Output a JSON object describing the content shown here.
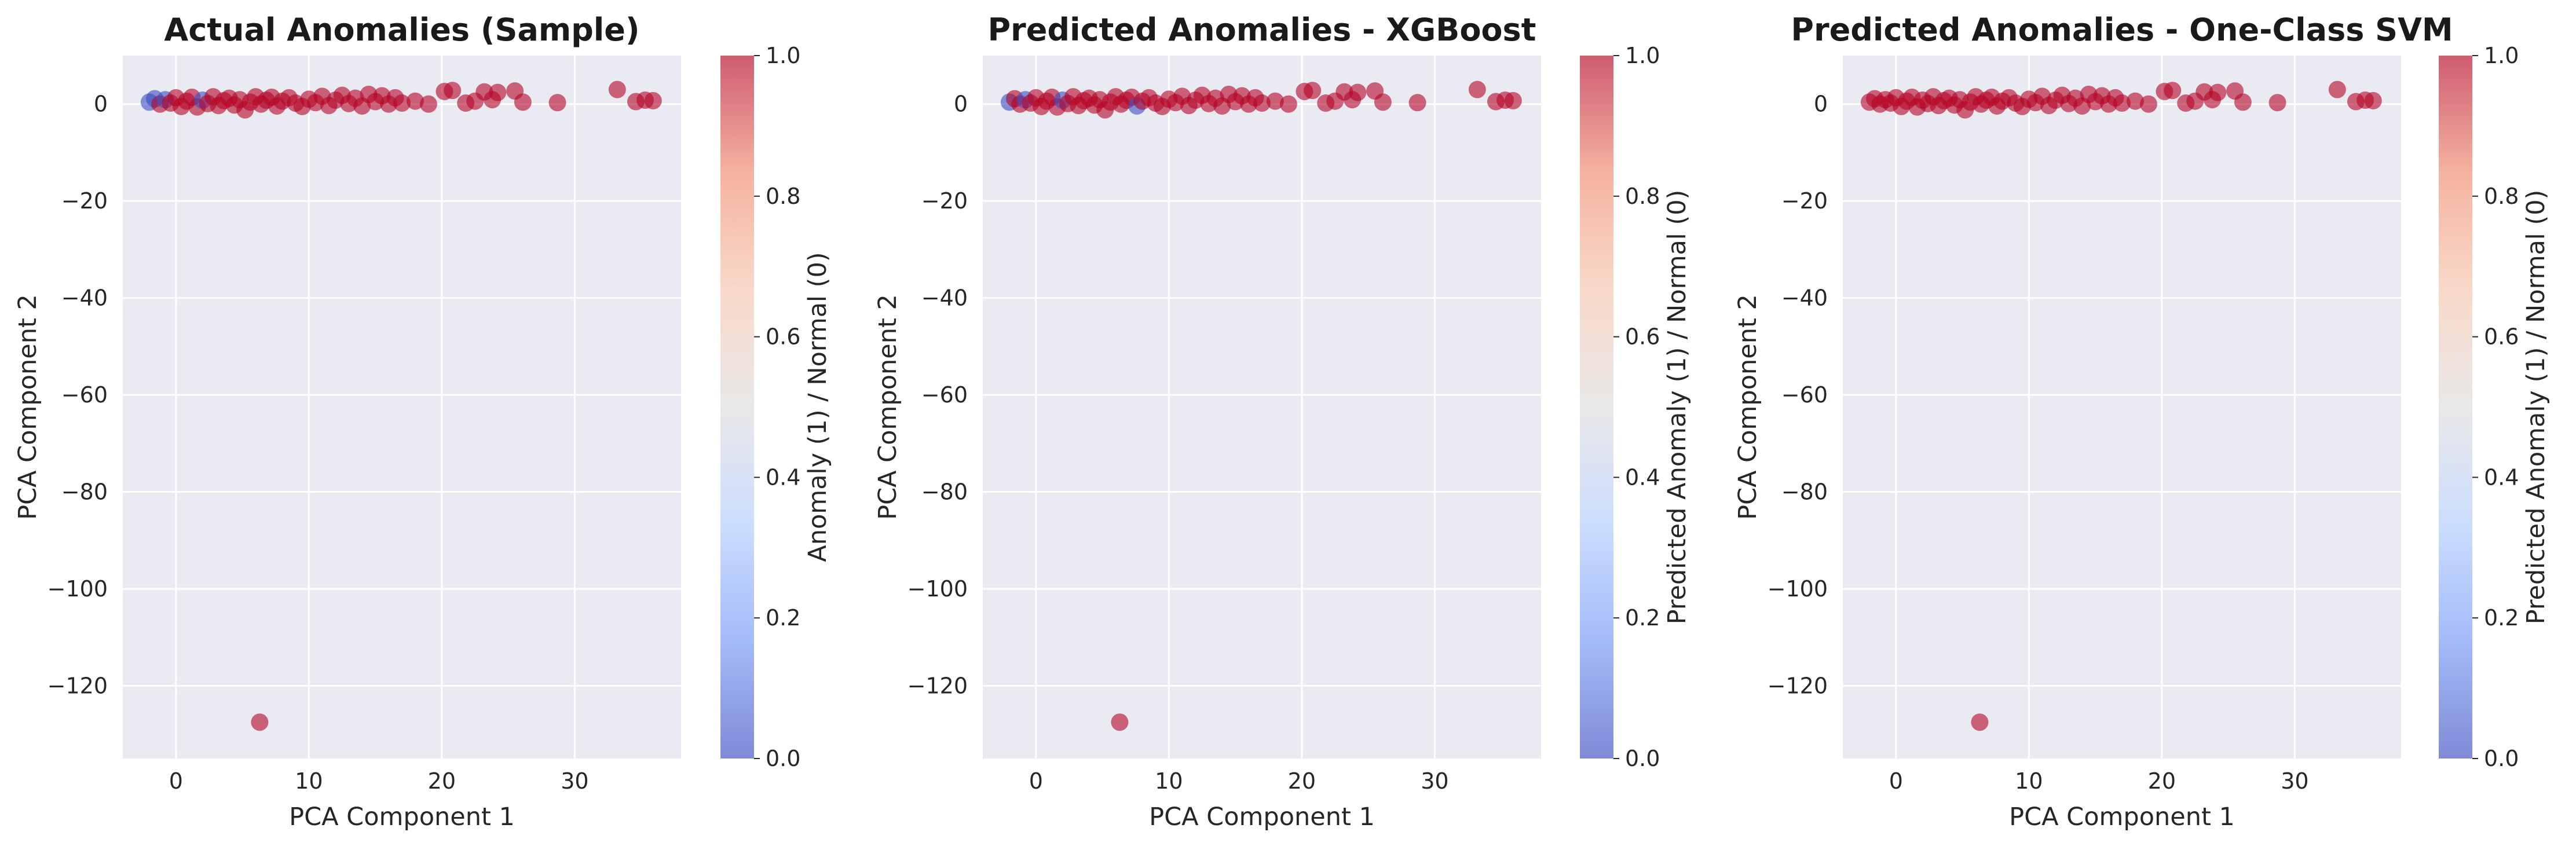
{
  "chart_data": [
    {
      "type": "scatter",
      "title": "Actual Anomalies (Sample)",
      "xlabel": "PCA Component 1",
      "ylabel": "PCA Component 2",
      "xlim": [
        -4,
        38
      ],
      "ylim": [
        -135,
        10
      ],
      "xticks": [
        0,
        10,
        20,
        30
      ],
      "yticks": [
        0,
        -20,
        -40,
        -60,
        -80,
        -100,
        -120
      ],
      "grid": true,
      "colormap": "coolwarm",
      "colorbar": {
        "label": "Anomaly (1) / Normal (0)",
        "range": [
          0,
          1
        ],
        "ticks": [
          "0.0",
          "0.2",
          "0.4",
          "0.6",
          "0.8",
          "1.0"
        ]
      },
      "points": [
        {
          "x": -2.0,
          "y": 0.4,
          "c": 0
        },
        {
          "x": -1.6,
          "y": 1.1,
          "c": 0
        },
        {
          "x": -1.2,
          "y": 0.0,
          "c": 1
        },
        {
          "x": -0.8,
          "y": 0.9,
          "c": 0
        },
        {
          "x": -0.4,
          "y": 0.2,
          "c": 1
        },
        {
          "x": 0.0,
          "y": 1.3,
          "c": 1
        },
        {
          "x": 0.4,
          "y": -0.5,
          "c": 1
        },
        {
          "x": 0.8,
          "y": 0.6,
          "c": 1
        },
        {
          "x": 1.2,
          "y": 1.4,
          "c": 1
        },
        {
          "x": 1.6,
          "y": -0.6,
          "c": 1
        },
        {
          "x": 2.0,
          "y": 0.8,
          "c": 0
        },
        {
          "x": 2.4,
          "y": 0.1,
          "c": 1
        },
        {
          "x": 2.8,
          "y": 1.5,
          "c": 1
        },
        {
          "x": 3.2,
          "y": -0.3,
          "c": 1
        },
        {
          "x": 3.6,
          "y": 0.7,
          "c": 1
        },
        {
          "x": 4.0,
          "y": 1.2,
          "c": 1
        },
        {
          "x": 4.4,
          "y": -0.2,
          "c": 1
        },
        {
          "x": 4.8,
          "y": 0.9,
          "c": 1
        },
        {
          "x": 5.2,
          "y": -1.2,
          "c": 1
        },
        {
          "x": 5.6,
          "y": 0.4,
          "c": 1
        },
        {
          "x": 6.0,
          "y": 1.5,
          "c": 1
        },
        {
          "x": 6.4,
          "y": 0.0,
          "c": 1
        },
        {
          "x": 6.8,
          "y": 0.8,
          "c": 1
        },
        {
          "x": 7.2,
          "y": 1.4,
          "c": 1
        },
        {
          "x": 7.6,
          "y": -0.4,
          "c": 1
        },
        {
          "x": 8.0,
          "y": 0.6,
          "c": 1
        },
        {
          "x": 8.5,
          "y": 1.3,
          "c": 1
        },
        {
          "x": 9.0,
          "y": 0.2,
          "c": 1
        },
        {
          "x": 9.5,
          "y": -0.5,
          "c": 1
        },
        {
          "x": 10.0,
          "y": 1.0,
          "c": 1
        },
        {
          "x": 10.5,
          "y": 0.3,
          "c": 1
        },
        {
          "x": 11.0,
          "y": 1.6,
          "c": 1
        },
        {
          "x": 11.5,
          "y": -0.3,
          "c": 1
        },
        {
          "x": 12.0,
          "y": 0.8,
          "c": 1
        },
        {
          "x": 12.5,
          "y": 1.8,
          "c": 1
        },
        {
          "x": 13.0,
          "y": 0.1,
          "c": 1
        },
        {
          "x": 13.5,
          "y": 1.2,
          "c": 1
        },
        {
          "x": 14.0,
          "y": -0.4,
          "c": 1
        },
        {
          "x": 14.5,
          "y": 2.0,
          "c": 1
        },
        {
          "x": 15.0,
          "y": 0.5,
          "c": 1
        },
        {
          "x": 15.5,
          "y": 1.7,
          "c": 1
        },
        {
          "x": 16.0,
          "y": 0.0,
          "c": 1
        },
        {
          "x": 16.5,
          "y": 1.3,
          "c": 1
        },
        {
          "x": 17.0,
          "y": 0.2,
          "c": 1
        },
        {
          "x": 18.0,
          "y": 0.6,
          "c": 1
        },
        {
          "x": 19.0,
          "y": 0.0,
          "c": 1
        },
        {
          "x": 20.2,
          "y": 2.6,
          "c": 1
        },
        {
          "x": 20.8,
          "y": 2.8,
          "c": 1
        },
        {
          "x": 21.8,
          "y": 0.2,
          "c": 1
        },
        {
          "x": 22.5,
          "y": 0.6,
          "c": 1
        },
        {
          "x": 23.2,
          "y": 2.5,
          "c": 1
        },
        {
          "x": 23.8,
          "y": 0.9,
          "c": 1
        },
        {
          "x": 24.2,
          "y": 2.4,
          "c": 1
        },
        {
          "x": 25.5,
          "y": 2.7,
          "c": 1
        },
        {
          "x": 26.1,
          "y": 0.4,
          "c": 1
        },
        {
          "x": 28.7,
          "y": 0.3,
          "c": 1
        },
        {
          "x": 33.2,
          "y": 3.0,
          "c": 1
        },
        {
          "x": 34.6,
          "y": 0.5,
          "c": 1
        },
        {
          "x": 35.3,
          "y": 0.8,
          "c": 1
        },
        {
          "x": 35.9,
          "y": 0.7,
          "c": 1
        },
        {
          "x": 6.3,
          "y": -127.5,
          "c": 1
        }
      ]
    },
    {
      "type": "scatter",
      "title": "Predicted Anomalies - XGBoost",
      "xlabel": "PCA Component 1",
      "ylabel": "PCA Component 2",
      "xlim": [
        -4,
        38
      ],
      "ylim": [
        -135,
        10
      ],
      "xticks": [
        0,
        10,
        20,
        30
      ],
      "yticks": [
        0,
        -20,
        -40,
        -60,
        -80,
        -100,
        -120
      ],
      "grid": true,
      "colormap": "coolwarm",
      "colorbar": {
        "label": "Predicted Anomaly (1) / Normal (0)",
        "range": [
          0,
          1
        ],
        "ticks": [
          "0.0",
          "0.2",
          "0.4",
          "0.6",
          "0.8",
          "1.0"
        ]
      },
      "points": [
        {
          "x": -2.0,
          "y": 0.4,
          "c": 0
        },
        {
          "x": -1.6,
          "y": 1.1,
          "c": 1
        },
        {
          "x": -1.2,
          "y": 0.0,
          "c": 1
        },
        {
          "x": -0.8,
          "y": 0.9,
          "c": 0
        },
        {
          "x": -0.4,
          "y": 0.2,
          "c": 1
        },
        {
          "x": 0.0,
          "y": 1.3,
          "c": 1
        },
        {
          "x": 0.4,
          "y": -0.5,
          "c": 1
        },
        {
          "x": 0.8,
          "y": 0.6,
          "c": 1
        },
        {
          "x": 1.2,
          "y": 1.4,
          "c": 1
        },
        {
          "x": 1.6,
          "y": -0.6,
          "c": 1
        },
        {
          "x": 2.0,
          "y": 0.8,
          "c": 0
        },
        {
          "x": 2.4,
          "y": 0.1,
          "c": 1
        },
        {
          "x": 2.8,
          "y": 1.5,
          "c": 1
        },
        {
          "x": 3.2,
          "y": -0.3,
          "c": 1
        },
        {
          "x": 3.6,
          "y": 0.7,
          "c": 1
        },
        {
          "x": 4.0,
          "y": 1.2,
          "c": 1
        },
        {
          "x": 4.4,
          "y": -0.2,
          "c": 1
        },
        {
          "x": 4.8,
          "y": 0.9,
          "c": 1
        },
        {
          "x": 5.2,
          "y": -1.2,
          "c": 1
        },
        {
          "x": 5.6,
          "y": 0.4,
          "c": 1
        },
        {
          "x": 6.0,
          "y": 1.5,
          "c": 1
        },
        {
          "x": 6.4,
          "y": 0.0,
          "c": 1
        },
        {
          "x": 6.8,
          "y": 0.8,
          "c": 1
        },
        {
          "x": 7.2,
          "y": 1.4,
          "c": 1
        },
        {
          "x": 7.6,
          "y": -0.4,
          "c": 0
        },
        {
          "x": 8.0,
          "y": 0.6,
          "c": 1
        },
        {
          "x": 8.5,
          "y": 1.3,
          "c": 1
        },
        {
          "x": 9.0,
          "y": 0.2,
          "c": 1
        },
        {
          "x": 9.5,
          "y": -0.5,
          "c": 1
        },
        {
          "x": 10.0,
          "y": 1.0,
          "c": 1
        },
        {
          "x": 10.5,
          "y": 0.3,
          "c": 1
        },
        {
          "x": 11.0,
          "y": 1.6,
          "c": 1
        },
        {
          "x": 11.5,
          "y": -0.3,
          "c": 1
        },
        {
          "x": 12.0,
          "y": 0.8,
          "c": 1
        },
        {
          "x": 12.5,
          "y": 1.8,
          "c": 1
        },
        {
          "x": 13.0,
          "y": 0.1,
          "c": 1
        },
        {
          "x": 13.5,
          "y": 1.2,
          "c": 1
        },
        {
          "x": 14.0,
          "y": -0.4,
          "c": 1
        },
        {
          "x": 14.5,
          "y": 2.0,
          "c": 1
        },
        {
          "x": 15.0,
          "y": 0.5,
          "c": 1
        },
        {
          "x": 15.5,
          "y": 1.7,
          "c": 1
        },
        {
          "x": 16.0,
          "y": 0.0,
          "c": 1
        },
        {
          "x": 16.5,
          "y": 1.3,
          "c": 1
        },
        {
          "x": 17.0,
          "y": 0.2,
          "c": 1
        },
        {
          "x": 18.0,
          "y": 0.6,
          "c": 1
        },
        {
          "x": 19.0,
          "y": 0.0,
          "c": 1
        },
        {
          "x": 20.2,
          "y": 2.6,
          "c": 1
        },
        {
          "x": 20.8,
          "y": 2.8,
          "c": 1
        },
        {
          "x": 21.8,
          "y": 0.2,
          "c": 1
        },
        {
          "x": 22.5,
          "y": 0.6,
          "c": 1
        },
        {
          "x": 23.2,
          "y": 2.5,
          "c": 1
        },
        {
          "x": 23.8,
          "y": 0.9,
          "c": 1
        },
        {
          "x": 24.2,
          "y": 2.4,
          "c": 1
        },
        {
          "x": 25.5,
          "y": 2.7,
          "c": 1
        },
        {
          "x": 26.1,
          "y": 0.4,
          "c": 1
        },
        {
          "x": 28.7,
          "y": 0.3,
          "c": 1
        },
        {
          "x": 33.2,
          "y": 3.0,
          "c": 1
        },
        {
          "x": 34.6,
          "y": 0.5,
          "c": 1
        },
        {
          "x": 35.3,
          "y": 0.8,
          "c": 1
        },
        {
          "x": 35.9,
          "y": 0.7,
          "c": 1
        },
        {
          "x": 6.3,
          "y": -127.5,
          "c": 1
        }
      ]
    },
    {
      "type": "scatter",
      "title": "Predicted Anomalies - One-Class SVM",
      "xlabel": "PCA Component 1",
      "ylabel": "PCA Component 2",
      "xlim": [
        -4,
        38
      ],
      "ylim": [
        -135,
        10
      ],
      "xticks": [
        0,
        10,
        20,
        30
      ],
      "yticks": [
        0,
        -20,
        -40,
        -60,
        -80,
        -100,
        -120
      ],
      "grid": true,
      "colormap": "coolwarm",
      "colorbar": {
        "label": "Predicted Anomaly (1) / Normal (0)",
        "range": [
          0,
          1
        ],
        "ticks": [
          "0.0",
          "0.2",
          "0.4",
          "0.6",
          "0.8",
          "1.0"
        ]
      },
      "points": [
        {
          "x": -2.0,
          "y": 0.4,
          "c": 1
        },
        {
          "x": -1.6,
          "y": 1.1,
          "c": 1
        },
        {
          "x": -1.2,
          "y": 0.0,
          "c": 1
        },
        {
          "x": -0.8,
          "y": 0.9,
          "c": 1
        },
        {
          "x": -0.4,
          "y": 0.2,
          "c": 1
        },
        {
          "x": 0.0,
          "y": 1.3,
          "c": 1
        },
        {
          "x": 0.4,
          "y": -0.5,
          "c": 1
        },
        {
          "x": 0.8,
          "y": 0.6,
          "c": 1
        },
        {
          "x": 1.2,
          "y": 1.4,
          "c": 1
        },
        {
          "x": 1.6,
          "y": -0.6,
          "c": 1
        },
        {
          "x": 2.0,
          "y": 0.8,
          "c": 1
        },
        {
          "x": 2.4,
          "y": 0.1,
          "c": 1
        },
        {
          "x": 2.8,
          "y": 1.5,
          "c": 1
        },
        {
          "x": 3.2,
          "y": -0.3,
          "c": 1
        },
        {
          "x": 3.6,
          "y": 0.7,
          "c": 1
        },
        {
          "x": 4.0,
          "y": 1.2,
          "c": 1
        },
        {
          "x": 4.4,
          "y": -0.2,
          "c": 1
        },
        {
          "x": 4.8,
          "y": 0.9,
          "c": 1
        },
        {
          "x": 5.2,
          "y": -1.2,
          "c": 1
        },
        {
          "x": 5.6,
          "y": 0.4,
          "c": 1
        },
        {
          "x": 6.0,
          "y": 1.5,
          "c": 1
        },
        {
          "x": 6.4,
          "y": 0.0,
          "c": 1
        },
        {
          "x": 6.8,
          "y": 0.8,
          "c": 1
        },
        {
          "x": 7.2,
          "y": 1.4,
          "c": 1
        },
        {
          "x": 7.6,
          "y": -0.4,
          "c": 1
        },
        {
          "x": 8.0,
          "y": 0.6,
          "c": 1
        },
        {
          "x": 8.5,
          "y": 1.3,
          "c": 1
        },
        {
          "x": 9.0,
          "y": 0.2,
          "c": 1
        },
        {
          "x": 9.5,
          "y": -0.5,
          "c": 1
        },
        {
          "x": 10.0,
          "y": 1.0,
          "c": 1
        },
        {
          "x": 10.5,
          "y": 0.3,
          "c": 1
        },
        {
          "x": 11.0,
          "y": 1.6,
          "c": 1
        },
        {
          "x": 11.5,
          "y": -0.3,
          "c": 1
        },
        {
          "x": 12.0,
          "y": 0.8,
          "c": 1
        },
        {
          "x": 12.5,
          "y": 1.8,
          "c": 1
        },
        {
          "x": 13.0,
          "y": 0.1,
          "c": 1
        },
        {
          "x": 13.5,
          "y": 1.2,
          "c": 1
        },
        {
          "x": 14.0,
          "y": -0.4,
          "c": 1
        },
        {
          "x": 14.5,
          "y": 2.0,
          "c": 1
        },
        {
          "x": 15.0,
          "y": 0.5,
          "c": 1
        },
        {
          "x": 15.5,
          "y": 1.7,
          "c": 1
        },
        {
          "x": 16.0,
          "y": 0.0,
          "c": 1
        },
        {
          "x": 16.5,
          "y": 1.3,
          "c": 1
        },
        {
          "x": 17.0,
          "y": 0.2,
          "c": 1
        },
        {
          "x": 18.0,
          "y": 0.6,
          "c": 1
        },
        {
          "x": 19.0,
          "y": 0.0,
          "c": 1
        },
        {
          "x": 20.2,
          "y": 2.6,
          "c": 1
        },
        {
          "x": 20.8,
          "y": 2.8,
          "c": 1
        },
        {
          "x": 21.8,
          "y": 0.2,
          "c": 1
        },
        {
          "x": 22.5,
          "y": 0.6,
          "c": 1
        },
        {
          "x": 23.2,
          "y": 2.5,
          "c": 1
        },
        {
          "x": 23.8,
          "y": 0.9,
          "c": 1
        },
        {
          "x": 24.2,
          "y": 2.4,
          "c": 1
        },
        {
          "x": 25.5,
          "y": 2.7,
          "c": 1
        },
        {
          "x": 26.1,
          "y": 0.4,
          "c": 1
        },
        {
          "x": 28.7,
          "y": 0.3,
          "c": 1
        },
        {
          "x": 33.2,
          "y": 3.0,
          "c": 1
        },
        {
          "x": 34.6,
          "y": 0.5,
          "c": 1
        },
        {
          "x": 35.3,
          "y": 0.8,
          "c": 1
        },
        {
          "x": 35.9,
          "y": 0.7,
          "c": 1
        },
        {
          "x": 6.3,
          "y": -127.5,
          "c": 1
        }
      ]
    }
  ],
  "colors": {
    "plot_background": "#eaeaf2",
    "grid": "#ffffff",
    "normal_point": "#3b4cc0",
    "anomaly_point": "#b40426",
    "colormap_stops": [
      "#3b4cc0",
      "#7396f5",
      "#b0cbfc",
      "#dddcdc",
      "#f5c4ac",
      "#f08a6c",
      "#b40426"
    ]
  }
}
